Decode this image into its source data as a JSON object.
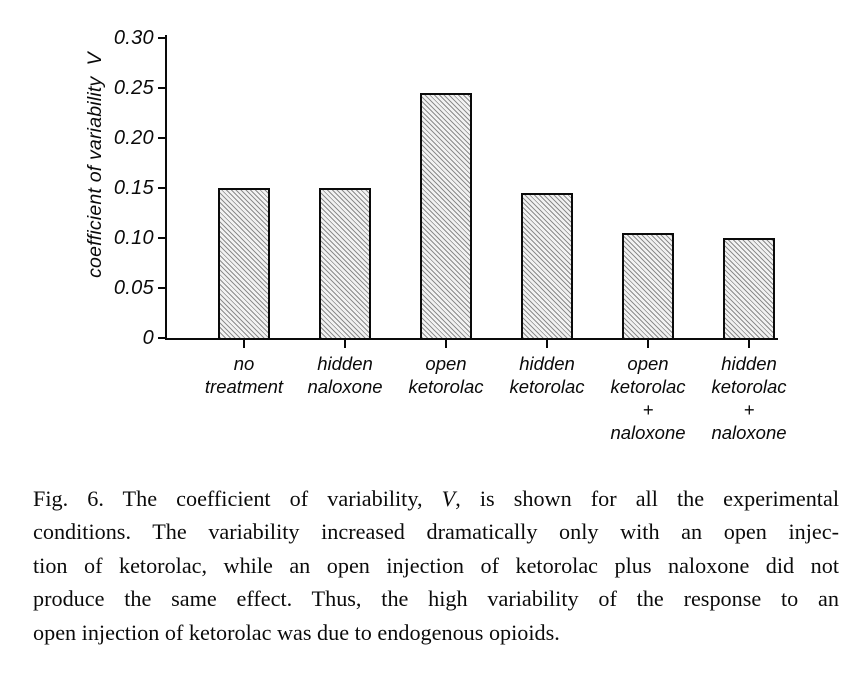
{
  "chart_data": {
    "type": "bar",
    "title": "",
    "xlabel": "",
    "ylabel": "coefficient of variability  V",
    "ylim": [
      0,
      0.3
    ],
    "grid": false,
    "legend": null,
    "yticks": [
      0.3,
      0.25,
      0.2,
      0.15,
      0.1,
      0.05,
      0
    ],
    "ytick_labels": [
      "0.30",
      "0.25",
      "0.20",
      "0.15",
      "0.10",
      "0.05",
      "0"
    ],
    "categories": [
      "no treatment",
      "hidden naloxone",
      "open ketorolac",
      "hidden ketorolac",
      "open ketorolac + naloxone",
      "hidden ketorolac + naloxone"
    ],
    "category_label_lines": [
      [
        "no",
        "treatment"
      ],
      [
        "hidden",
        "naloxone"
      ],
      [
        "open",
        "ketorolac"
      ],
      [
        "hidden",
        "ketorolac"
      ],
      [
        "open",
        "ketorolac",
        "+",
        "naloxone"
      ],
      [
        "hidden",
        "ketorolac",
        "+",
        "naloxone"
      ]
    ],
    "values": [
      0.15,
      0.15,
      0.245,
      0.145,
      0.105,
      0.1
    ],
    "bar_fill": "diagonal-hatch",
    "axis_color": "#0a0a0a",
    "hatch_color": "#8d8d8d",
    "bar_background": "#f2f2f2"
  },
  "figure": {
    "caption_lines": [
      {
        "justify": true,
        "segments": [
          {
            "t": "Fig. 6. The coefficient of variability, "
          },
          {
            "t": "V",
            "italic": true
          },
          {
            "t": ", is shown for all the experimental"
          }
        ]
      },
      {
        "justify": true,
        "segments": [
          {
            "t": "conditions. The variability increased dramatically only with an open injec-"
          }
        ]
      },
      {
        "justify": true,
        "segments": [
          {
            "t": "tion of ketorolac, while an open injection of ketorolac plus naloxone did not"
          }
        ]
      },
      {
        "justify": true,
        "segments": [
          {
            "t": "produce the same effect. Thus, the high variability of the response to an"
          }
        ]
      },
      {
        "justify": false,
        "segments": [
          {
            "t": "open injection of ketorolac was due to endogenous opioids."
          }
        ]
      }
    ]
  }
}
